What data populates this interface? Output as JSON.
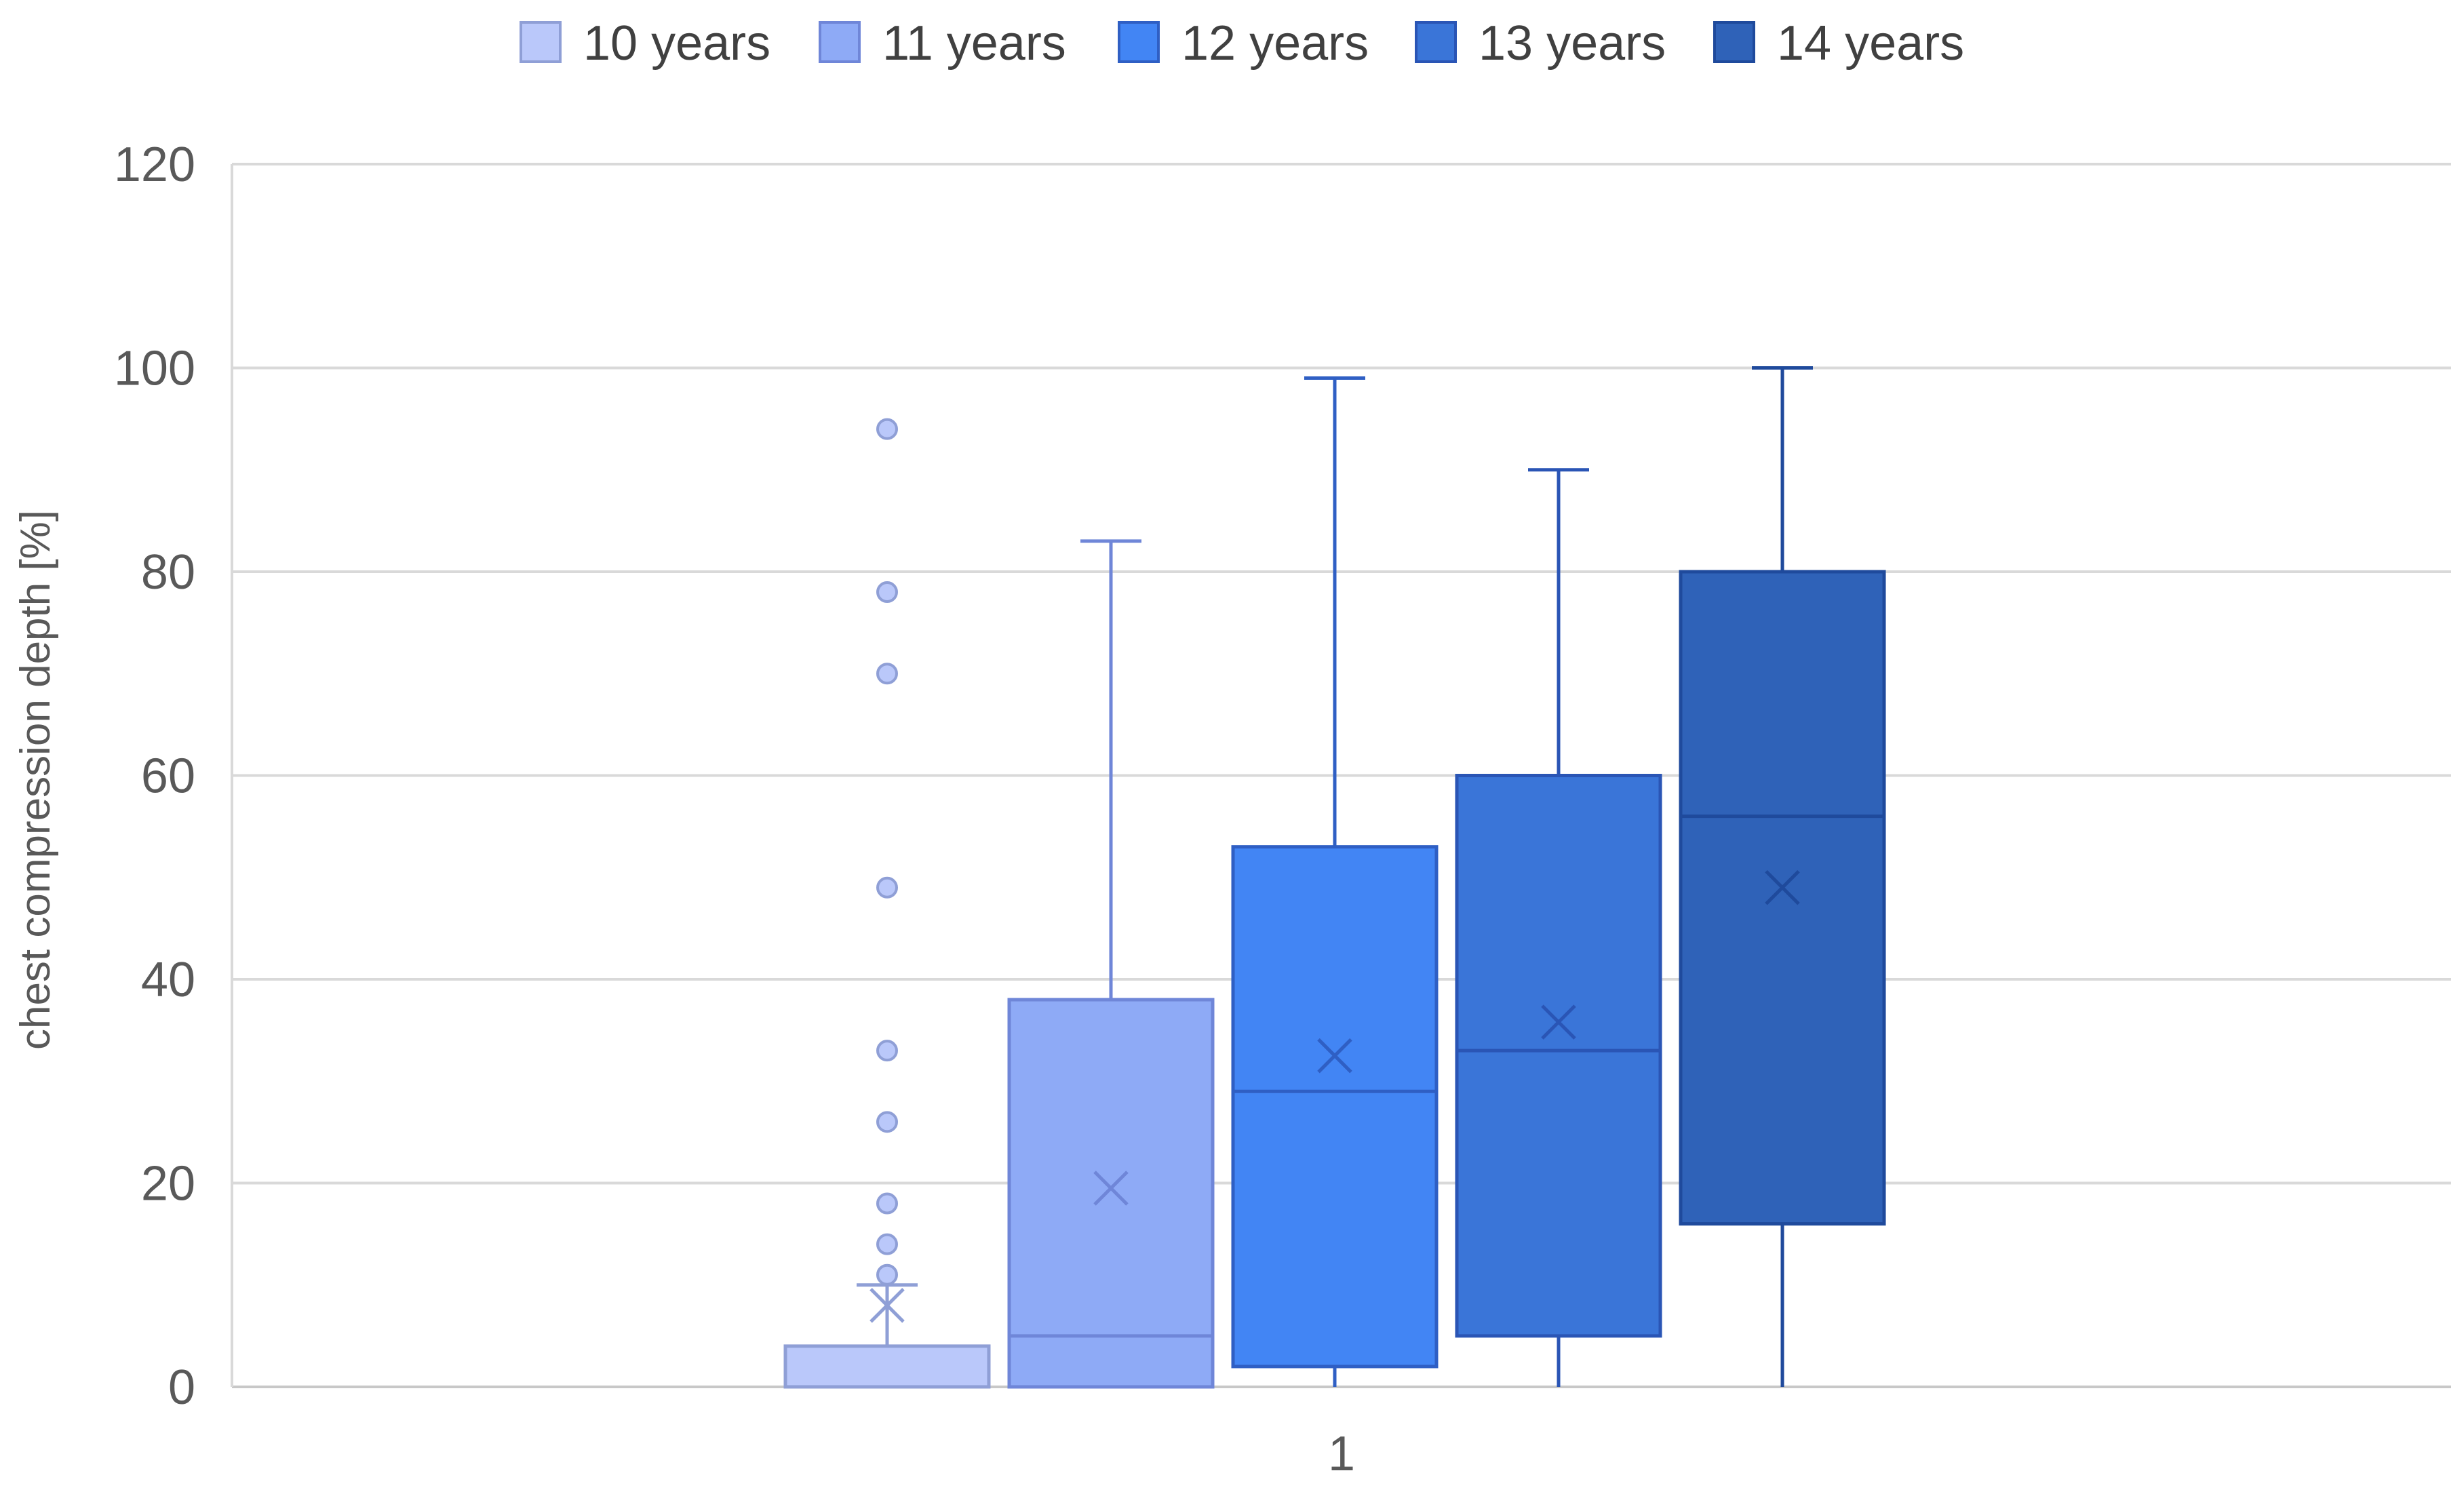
{
  "chart_data": {
    "type": "box",
    "title": "",
    "xlabel": "",
    "ylabel": "chest compression depth [%]",
    "categories": [
      "1"
    ],
    "ylim": [
      0,
      120
    ],
    "yticks": [
      "0",
      "20",
      "40",
      "60",
      "80",
      "100",
      "120"
    ],
    "grid": true,
    "legend_position": "top",
    "series": [
      {
        "name": "10 years",
        "color": "#bac8fa",
        "edge": "#8f9fd6",
        "min": 0,
        "q1": 0,
        "median": 0,
        "q3": 4,
        "max": 10,
        "mean": 8,
        "outliers": [
          11,
          14,
          18,
          26,
          33,
          49,
          70,
          78,
          94
        ]
      },
      {
        "name": "11 years",
        "color": "#8eaaf6",
        "edge": "#6f86d8",
        "min": 0,
        "q1": 0,
        "median": 5,
        "q3": 38,
        "max": 83,
        "mean": 19.5,
        "outliers": []
      },
      {
        "name": "12 years",
        "color": "#4285f4",
        "edge": "#2f5fc4",
        "min": 0,
        "q1": 2,
        "median": 29,
        "q3": 53,
        "max": 99,
        "mean": 32.5,
        "outliers": []
      },
      {
        "name": "13 years",
        "color": "#3a75d8",
        "edge": "#2a55b5",
        "min": 0,
        "q1": 5,
        "median": 33,
        "q3": 60,
        "max": 90,
        "mean": 35.8,
        "outliers": []
      },
      {
        "name": "14 years",
        "color": "#2f62b8",
        "edge": "#1f4a9c",
        "min": 0,
        "q1": 16,
        "median": 56,
        "q3": 80,
        "max": 100,
        "mean": 49,
        "outliers": []
      }
    ]
  }
}
